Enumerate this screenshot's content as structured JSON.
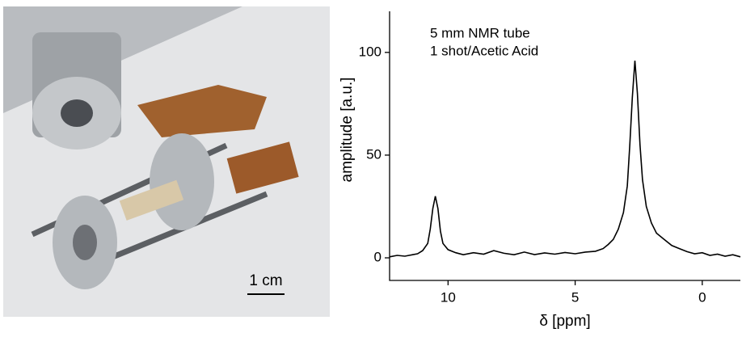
{
  "photo": {
    "scale_label": "1 cm"
  },
  "chart_data": {
    "type": "line",
    "annotations": [
      "5 mm NMR tube",
      "1 shot/Acetic Acid"
    ],
    "xlabel": "δ [ppm]",
    "ylabel": "amplitude [a.u.]",
    "x": [
      12.3,
      12.0,
      11.7,
      11.4,
      11.2,
      11.0,
      10.8,
      10.7,
      10.6,
      10.5,
      10.4,
      10.3,
      10.2,
      10.0,
      9.7,
      9.4,
      9.0,
      8.6,
      8.2,
      7.8,
      7.4,
      7.0,
      6.6,
      6.2,
      5.8,
      5.4,
      5.0,
      4.6,
      4.2,
      3.9,
      3.7,
      3.5,
      3.3,
      3.1,
      2.95,
      2.85,
      2.75,
      2.65,
      2.55,
      2.45,
      2.35,
      2.2,
      2.0,
      1.8,
      1.5,
      1.2,
      0.9,
      0.6,
      0.3,
      0,
      -0.3,
      -0.6,
      -0.9,
      -1.2,
      -1.5
    ],
    "series": [
      {
        "color": "#000000",
        "values": [
          0.5,
          1.2,
          0.8,
          1.5,
          2.0,
          3.5,
          7,
          14,
          24,
          30,
          24,
          13,
          7,
          4,
          2.5,
          1.5,
          2.5,
          1.8,
          3.5,
          2.2,
          1.5,
          2.8,
          1.6,
          2.4,
          1.8,
          2.6,
          2.0,
          2.8,
          3.2,
          4.5,
          6.5,
          9,
          14,
          22,
          35,
          55,
          78,
          96,
          80,
          55,
          38,
          25,
          17,
          12,
          9,
          6,
          4.5,
          3,
          2,
          2.5,
          1.2,
          1.8,
          0.8,
          1.5,
          0.5
        ]
      }
    ],
    "xlim": [
      12.3,
      -1.5
    ],
    "xticks": [
      10,
      5,
      0
    ],
    "ylim": [
      -11,
      120
    ],
    "yticks": [
      0,
      50,
      100
    ]
  }
}
